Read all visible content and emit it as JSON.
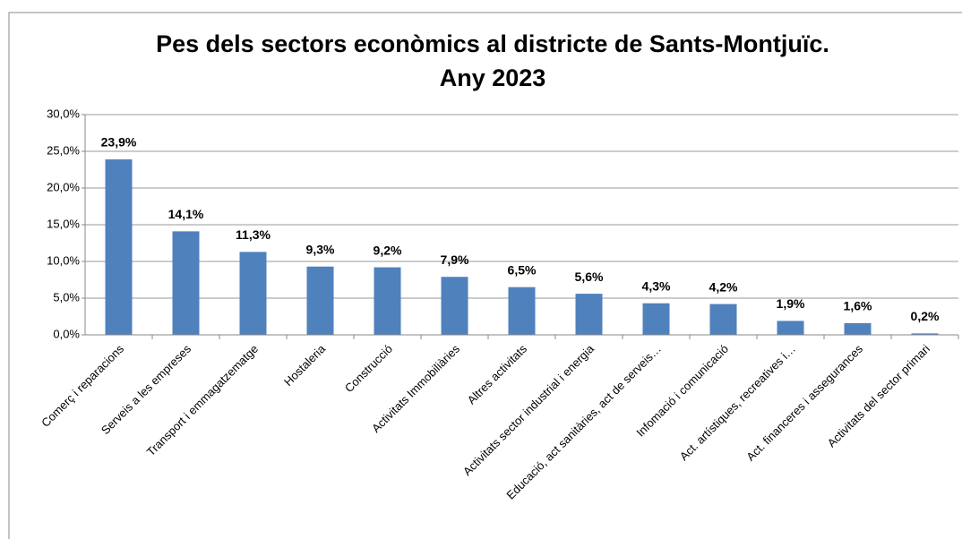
{
  "chart_data": {
    "type": "bar",
    "title": "Pes dels sectors econòmics al districte de Sants-Montjuïc. Any 2023",
    "categories": [
      "Comerç i reparacions",
      "Serveis a les empreses",
      "Transport i emmagatzematge",
      "Hostaleria",
      "Construcció",
      "Activitats Immobiliàries",
      "Altres activitats",
      "Activitats sector industrial i energia",
      "Educació, act sanitàries, act de serveis…",
      "Infomació i comunicació",
      "Act. artístiques, recreatives i…",
      "Act. financeres i assegurances",
      "Activitats del sector primari"
    ],
    "values": [
      23.9,
      14.1,
      11.3,
      9.3,
      9.2,
      7.9,
      6.5,
      5.6,
      4.3,
      4.2,
      1.9,
      1.6,
      0.2
    ],
    "value_labels": [
      "23,9%",
      "14,1%",
      "11,3%",
      "9,3%",
      "9,2%",
      "7,9%",
      "6,5%",
      "5,6%",
      "4,3%",
      "4,2%",
      "1,9%",
      "1,6%",
      "0,2%"
    ],
    "color": "#4f81bd",
    "ylim": [
      0,
      30
    ],
    "yticks": [
      {
        "value": 0,
        "label": "0,0%"
      },
      {
        "value": 5,
        "label": "5,0%"
      },
      {
        "value": 10,
        "label": "10,0%"
      },
      {
        "value": 15,
        "label": "15,0%"
      },
      {
        "value": 20,
        "label": "20,0%"
      },
      {
        "value": 25,
        "label": "25,0%"
      },
      {
        "value": 30,
        "label": "30,0%"
      }
    ],
    "grid": true
  }
}
